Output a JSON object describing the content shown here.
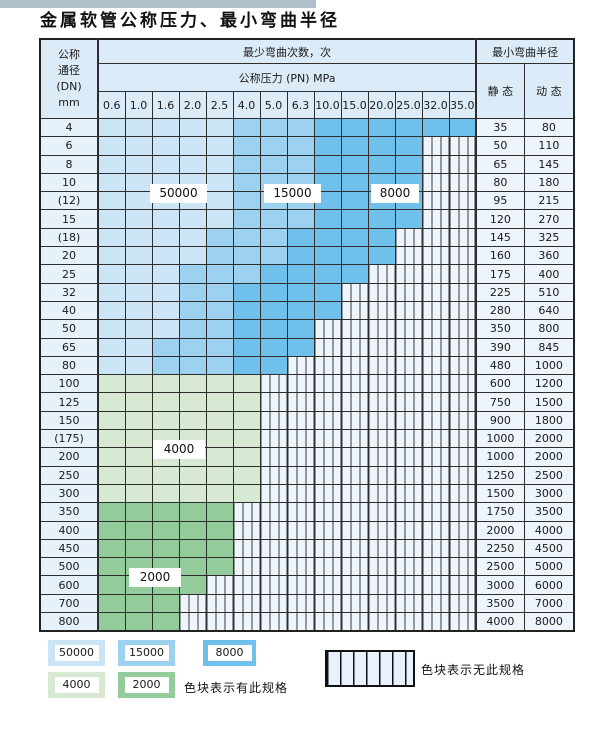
{
  "page": {
    "title": "金属软管公称压力、最小弯曲半径"
  },
  "table": {
    "header": {
      "dn_label_lines": [
        "公称",
        "通径",
        "(DN)",
        "mm"
      ],
      "bend_cycles_label": "最少弯曲次数，次",
      "pressure_label": "公称压力 (PN) MPa",
      "radius_label": "最小弯曲半径",
      "static_label": "静 态",
      "dynamic_label": "动 态",
      "pressure_columns": [
        "0.6",
        "1.0",
        "1.6",
        "2.0",
        "2.5",
        "4.0",
        "5.0",
        "6.3",
        "10.0",
        "15.0",
        "20.0",
        "25.0",
        "32.0",
        "35.0"
      ]
    },
    "zone_colors": {
      "c50000": "#cbe5f6",
      "c15000": "#9cd2f0",
      "c8000": "#6fc0ea",
      "c4000": "#d7e9d3",
      "c2000": "#93cc9a"
    },
    "hatch_meaning": "无此规格",
    "rows": [
      {
        "dn": "4",
        "static": "35",
        "dynamic": "80",
        "zones": [
          [
            "c50000",
            0,
            4
          ],
          [
            "c15000",
            5,
            7
          ],
          [
            "c8000",
            8,
            13
          ]
        ]
      },
      {
        "dn": "6",
        "static": "50",
        "dynamic": "110",
        "zones": [
          [
            "c50000",
            0,
            4
          ],
          [
            "c15000",
            5,
            7
          ],
          [
            "c8000",
            8,
            11
          ]
        ]
      },
      {
        "dn": "8",
        "static": "65",
        "dynamic": "145",
        "zones": [
          [
            "c50000",
            0,
            4
          ],
          [
            "c15000",
            5,
            7
          ],
          [
            "c8000",
            8,
            11
          ]
        ]
      },
      {
        "dn": "10",
        "static": "80",
        "dynamic": "180",
        "zones": [
          [
            "c50000",
            0,
            4
          ],
          [
            "c15000",
            5,
            7
          ],
          [
            "c8000",
            8,
            11
          ]
        ]
      },
      {
        "dn": "(12)",
        "static": "95",
        "dynamic": "215",
        "zones": [
          [
            "c50000",
            0,
            4
          ],
          [
            "c15000",
            5,
            7
          ],
          [
            "c8000",
            8,
            11
          ]
        ]
      },
      {
        "dn": "15",
        "static": "120",
        "dynamic": "270",
        "zones": [
          [
            "c50000",
            0,
            4
          ],
          [
            "c15000",
            5,
            7
          ],
          [
            "c8000",
            8,
            11
          ]
        ]
      },
      {
        "dn": "(18)",
        "static": "145",
        "dynamic": "325",
        "zones": [
          [
            "c50000",
            0,
            3
          ],
          [
            "c15000",
            4,
            6
          ],
          [
            "c8000",
            7,
            10
          ]
        ]
      },
      {
        "dn": "20",
        "static": "160",
        "dynamic": "360",
        "zones": [
          [
            "c50000",
            0,
            3
          ],
          [
            "c15000",
            4,
            6
          ],
          [
            "c8000",
            7,
            10
          ]
        ]
      },
      {
        "dn": "25",
        "static": "175",
        "dynamic": "400",
        "zones": [
          [
            "c50000",
            0,
            2
          ],
          [
            "c15000",
            3,
            5
          ],
          [
            "c8000",
            6,
            9
          ]
        ]
      },
      {
        "dn": "32",
        "static": "225",
        "dynamic": "510",
        "zones": [
          [
            "c50000",
            0,
            2
          ],
          [
            "c15000",
            3,
            4
          ],
          [
            "c8000",
            5,
            8
          ]
        ]
      },
      {
        "dn": "40",
        "static": "280",
        "dynamic": "640",
        "zones": [
          [
            "c50000",
            0,
            2
          ],
          [
            "c15000",
            3,
            4
          ],
          [
            "c8000",
            5,
            8
          ]
        ]
      },
      {
        "dn": "50",
        "static": "350",
        "dynamic": "800",
        "zones": [
          [
            "c50000",
            0,
            2
          ],
          [
            "c15000",
            3,
            4
          ],
          [
            "c8000",
            5,
            7
          ]
        ]
      },
      {
        "dn": "65",
        "static": "390",
        "dynamic": "845",
        "zones": [
          [
            "c50000",
            0,
            1
          ],
          [
            "c15000",
            2,
            4
          ],
          [
            "c8000",
            5,
            7
          ]
        ]
      },
      {
        "dn": "80",
        "static": "480",
        "dynamic": "1000",
        "zones": [
          [
            "c50000",
            0,
            1
          ],
          [
            "c15000",
            2,
            4
          ],
          [
            "c8000",
            5,
            6
          ]
        ]
      },
      {
        "dn": "100",
        "static": "600",
        "dynamic": "1200",
        "zones": [
          [
            "c4000",
            0,
            5
          ]
        ]
      },
      {
        "dn": "125",
        "static": "750",
        "dynamic": "1500",
        "zones": [
          [
            "c4000",
            0,
            5
          ]
        ]
      },
      {
        "dn": "150",
        "static": "900",
        "dynamic": "1800",
        "zones": [
          [
            "c4000",
            0,
            5
          ]
        ]
      },
      {
        "dn": "(175)",
        "static": "1000",
        "dynamic": "2000",
        "zones": [
          [
            "c4000",
            0,
            5
          ]
        ]
      },
      {
        "dn": "200",
        "static": "1000",
        "dynamic": "2000",
        "zones": [
          [
            "c4000",
            0,
            5
          ]
        ]
      },
      {
        "dn": "250",
        "static": "1250",
        "dynamic": "2500",
        "zones": [
          [
            "c4000",
            0,
            5
          ]
        ]
      },
      {
        "dn": "300",
        "static": "1500",
        "dynamic": "3000",
        "zones": [
          [
            "c4000",
            0,
            5
          ]
        ]
      },
      {
        "dn": "350",
        "static": "1750",
        "dynamic": "3500",
        "zones": [
          [
            "c2000",
            0,
            4
          ]
        ]
      },
      {
        "dn": "400",
        "static": "2000",
        "dynamic": "4000",
        "zones": [
          [
            "c2000",
            0,
            4
          ]
        ]
      },
      {
        "dn": "450",
        "static": "2250",
        "dynamic": "4500",
        "zones": [
          [
            "c2000",
            0,
            4
          ]
        ]
      },
      {
        "dn": "500",
        "static": "2500",
        "dynamic": "5000",
        "zones": [
          [
            "c2000",
            0,
            4
          ]
        ]
      },
      {
        "dn": "600",
        "static": "3000",
        "dynamic": "6000",
        "zones": [
          [
            "c2000",
            0,
            3
          ]
        ]
      },
      {
        "dn": "700",
        "static": "3500",
        "dynamic": "7000",
        "zones": [
          [
            "c2000",
            0,
            2
          ]
        ]
      },
      {
        "dn": "800",
        "static": "4000",
        "dynamic": "8000",
        "zones": [
          [
            "c2000",
            0,
            2
          ]
        ]
      }
    ]
  },
  "zone_labels": [
    "50000",
    "15000",
    "8000",
    "4000",
    "2000"
  ],
  "legend": {
    "items": [
      {
        "value": "50000",
        "color": "#cbe5f6"
      },
      {
        "value": "15000",
        "color": "#9cd2f0"
      },
      {
        "value": "8000",
        "color": "#6fc0ea"
      },
      {
        "value": "4000",
        "color": "#d7e9d3"
      },
      {
        "value": "2000",
        "color": "#93cc9a"
      }
    ],
    "has_spec_text": "色块表示有此规格",
    "no_spec_text": "色块表示无此规格"
  }
}
